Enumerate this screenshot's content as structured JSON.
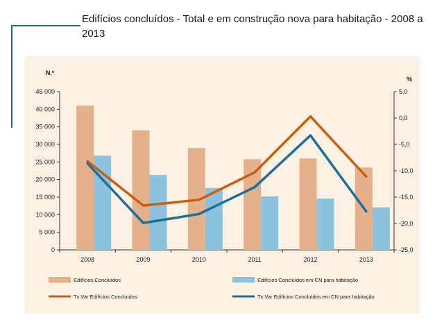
{
  "title": "Edifícios concluídos - Total e em construção nova para habitação - 2008 a 2013",
  "chart_data": {
    "type": "bar",
    "title": "Edifícios concluídos - Total e em construção nova para habitação - 2008 a 2013",
    "categories": [
      "2008",
      "2009",
      "2010",
      "2011",
      "2012",
      "2013"
    ],
    "ylabel": "N.º",
    "y2label": "%",
    "ylim": [
      0,
      45000
    ],
    "y2lim": [
      -25,
      5
    ],
    "yticks": [
      "0",
      "5 000",
      "10 000",
      "15 000",
      "20 000",
      "25 000",
      "30 000",
      "35 000",
      "40 000",
      "45 000"
    ],
    "y2ticks": [
      "-25,0",
      "-20,0",
      "-15,0",
      "-10,0",
      "-5,0",
      "0,0",
      "5,0"
    ],
    "grid": false,
    "legend_position": "bottom",
    "series": [
      {
        "name": "Edifícios Concluídos",
        "type": "bar",
        "axis": "left",
        "color": "#e5b18a",
        "values": [
          41000,
          34000,
          29000,
          25800,
          26000,
          23400
        ]
      },
      {
        "name": "Edifícios Concluídos  em CN para habitação",
        "type": "bar",
        "axis": "left",
        "color": "#8cc2dd",
        "values": [
          26800,
          21300,
          17600,
          15200,
          14600,
          12100
        ]
      },
      {
        "name": "Tx Var Edifícios Concluídos",
        "type": "line",
        "axis": "right",
        "color": "#c85f0f",
        "values": [
          -8.2,
          -16.6,
          -15.5,
          -10.3,
          0.3,
          -11.1
        ]
      },
      {
        "name": "Tx Var Edifícios Concluídos  em CN para habitação",
        "type": "line",
        "axis": "right",
        "color": "#1b6f9c",
        "values": [
          -8.6,
          -19.9,
          -18.2,
          -13.1,
          -3.3,
          -17.7
        ]
      }
    ]
  }
}
